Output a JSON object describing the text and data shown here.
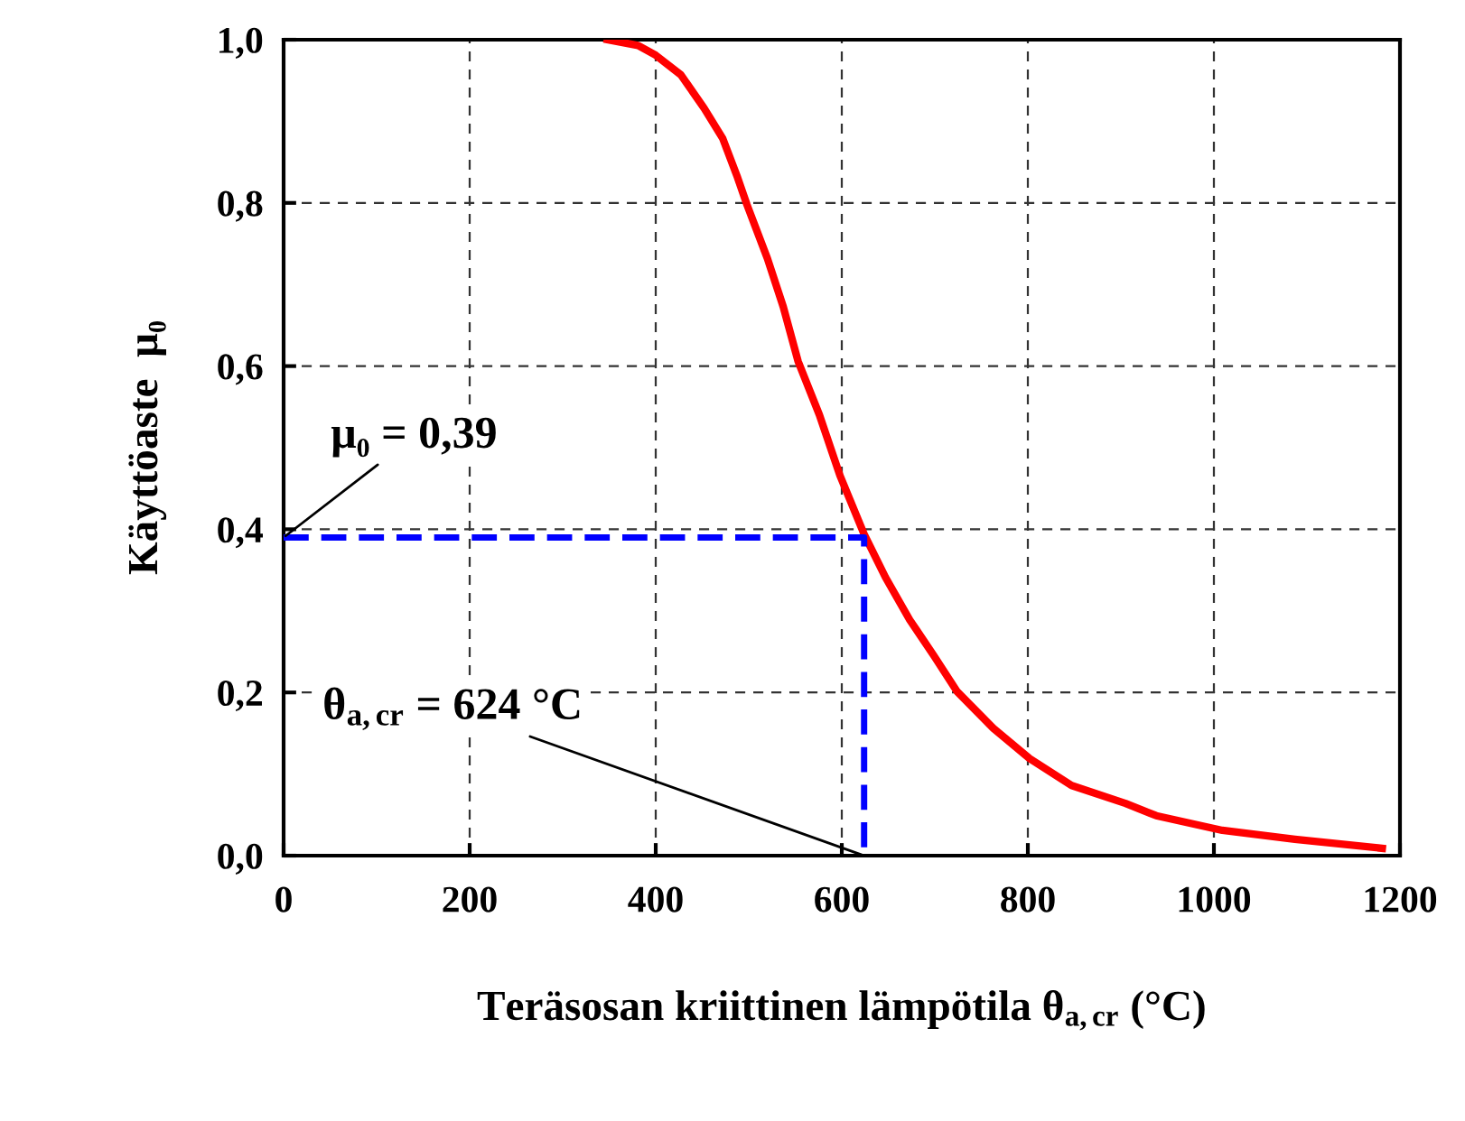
{
  "chart_data": {
    "type": "line",
    "xlabel": "Teräsosan kriittinen lämpötila θ$_{a,cr}$ (°C)",
    "ylabel": "Käyttöaste  μ₀",
    "series": [
      {
        "color": "#ff0000",
        "line_style": "solid",
        "x": [
          348,
          381,
          400,
          427,
          452,
          472,
          488,
          498,
          520,
          537,
          553,
          576,
          598,
          624,
          647,
          673,
          699,
          724,
          763,
          802,
          847,
          905,
          938,
          1009,
          1087,
          1181
        ],
        "values": [
          1.0,
          0.993,
          0.981,
          0.957,
          0.916,
          0.879,
          0.831,
          0.798,
          0.732,
          0.673,
          0.606,
          0.54,
          0.466,
          0.394,
          0.341,
          0.289,
          0.245,
          0.201,
          0.156,
          0.119,
          0.086,
          0.064,
          0.049,
          0.031,
          0.02,
          0.009
        ]
      },
      {
        "color": "#0000ff",
        "line_style": "dashed",
        "x": [
          0,
          624,
          624
        ],
        "values": [
          0.39,
          0.39,
          0
        ]
      }
    ],
    "xlim": [
      0,
      1200
    ],
    "xticks": [
      0,
      200,
      400,
      600,
      800,
      1000,
      1200
    ],
    "ylim": [
      0,
      1
    ],
    "yticks": [
      {
        "value": 0,
        "label": "0,0"
      },
      {
        "value": 0.2,
        "label": "0,2"
      },
      {
        "value": 0.4,
        "label": "0,4"
      },
      {
        "value": 0.6,
        "label": "0,6"
      },
      {
        "value": 0.8,
        "label": "0,8"
      },
      {
        "value": 1,
        "label": "1,0"
      }
    ],
    "grid": true,
    "marker": "none",
    "annotations": [
      {
        "text": "μ₀ = 0,39",
        "x": 0,
        "y": 0.39
      },
      {
        "text": "θ$_{a,cr}$ = 624 °C",
        "x": 624,
        "y": 0
      }
    ]
  }
}
